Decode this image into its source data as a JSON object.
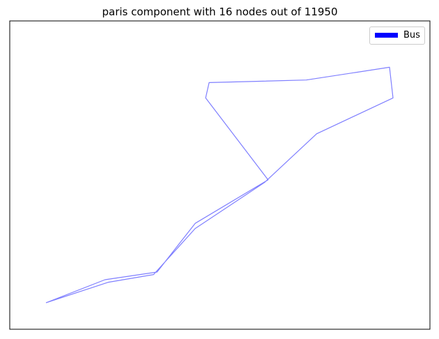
{
  "chart_data": {
    "type": "line",
    "title": "paris component with 16 nodes out of 11950",
    "xlabel": "",
    "ylabel": "",
    "axes_visible": false,
    "grid": false,
    "legend": {
      "placement": "top-right",
      "entries": [
        "Bus"
      ]
    },
    "series": [
      {
        "name": "Bus",
        "color": "#0000ff",
        "segments": [
          [
            [
              0.0,
              0.0
            ],
            [
              0.18,
              0.08
            ],
            [
              0.31,
              0.11
            ],
            [
              0.43,
              0.29
            ],
            [
              0.63,
              0.47
            ],
            [
              0.78,
              0.66
            ],
            [
              1.0,
              0.8
            ],
            [
              0.99,
              0.92
            ],
            [
              0.75,
              0.87
            ],
            [
              0.47,
              0.86
            ],
            [
              0.46,
              0.8
            ],
            [
              0.64,
              0.48
            ],
            [
              0.43,
              0.31
            ],
            [
              0.32,
              0.12
            ],
            [
              0.17,
              0.09
            ],
            [
              0.0,
              0.0
            ]
          ]
        ]
      }
    ]
  }
}
